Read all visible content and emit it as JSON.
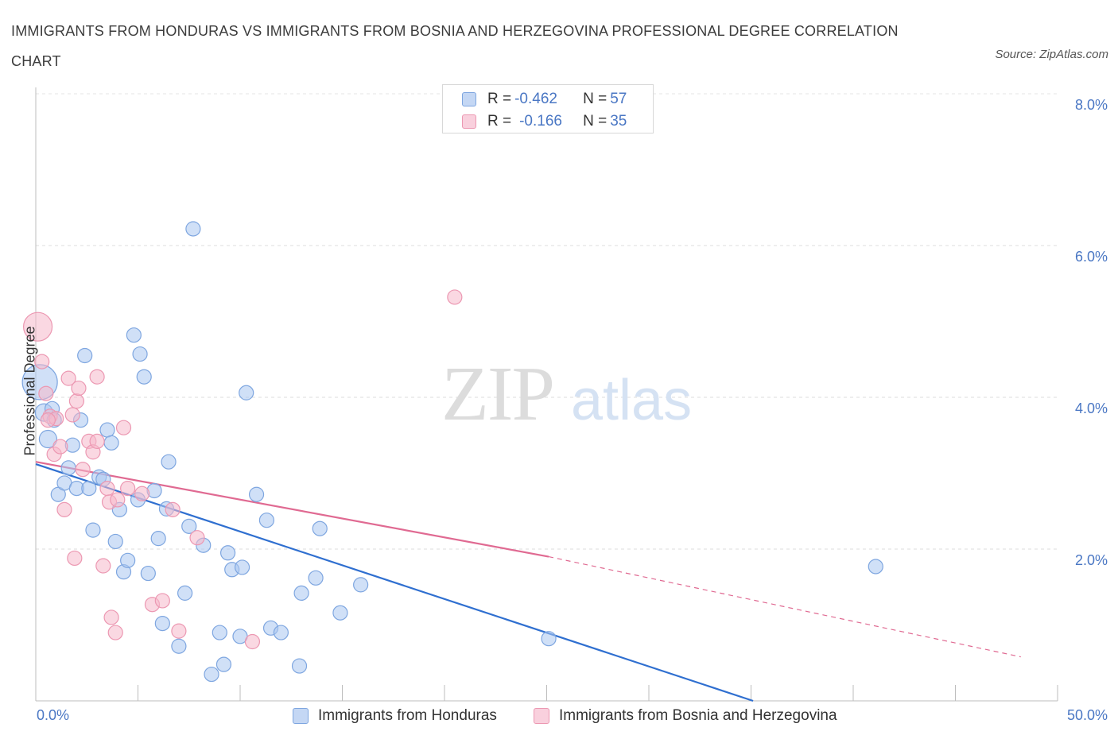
{
  "title": "IMMIGRANTS FROM HONDURAS VS IMMIGRANTS FROM BOSNIA AND HERZEGOVINA PROFESSIONAL DEGREE CORRELATION CHART",
  "source": "Source: ZipAtlas.com",
  "watermark": {
    "zip": "ZIP",
    "atlas": "atlas"
  },
  "legend": {
    "rows": [
      {
        "r_label": "R = ",
        "r_value": "-0.462",
        "n_label": "N = ",
        "n_value": "57",
        "color": "#aac6f0"
      },
      {
        "r_label": "R = ",
        "r_value": "-0.166",
        "n_label": "N = ",
        "n_value": "35",
        "color": "#f5b8cb"
      }
    ]
  },
  "chart_data": {
    "type": "scatter",
    "title": "IMMIGRANTS FROM HONDURAS VS IMMIGRANTS FROM BOSNIA AND HERZEGOVINA PROFESSIONAL DEGREE CORRELATION CHART",
    "xlabel": "",
    "ylabel": "Professional Degree",
    "xlim": [
      0,
      50
    ],
    "ylim": [
      0,
      8
    ],
    "x_tick_labels": [
      "0.0%",
      "50.0%"
    ],
    "y_tick_labels": [
      "2.0%",
      "4.0%",
      "6.0%",
      "8.0%"
    ],
    "y_ticks": [
      2,
      4,
      6,
      8
    ],
    "grid": true,
    "legend_position": "top-center",
    "series": [
      {
        "name": "Immigrants from Honduras",
        "color": "#aac6f0",
        "stroke": "#7ea6e0",
        "trend_color": "#2f6fd0",
        "trend": {
          "x0": 0,
          "y0": 3.12,
          "x1": 35.1,
          "y1": 0.0
        },
        "points": [
          [
            0.2,
            4.2
          ],
          [
            0.4,
            3.8
          ],
          [
            0.6,
            3.45
          ],
          [
            0.8,
            3.85
          ],
          [
            0.9,
            3.7
          ],
          [
            1.1,
            2.72
          ],
          [
            1.4,
            2.87
          ],
          [
            1.6,
            3.07
          ],
          [
            1.8,
            3.37
          ],
          [
            2.0,
            2.8
          ],
          [
            2.2,
            3.7
          ],
          [
            2.4,
            4.55
          ],
          [
            2.6,
            2.8
          ],
          [
            2.8,
            2.25
          ],
          [
            3.1,
            2.95
          ],
          [
            3.3,
            2.92
          ],
          [
            3.5,
            3.57
          ],
          [
            3.7,
            3.4
          ],
          [
            3.9,
            2.1
          ],
          [
            4.1,
            2.52
          ],
          [
            4.3,
            1.7
          ],
          [
            4.5,
            1.85
          ],
          [
            4.8,
            4.82
          ],
          [
            5.0,
            2.65
          ],
          [
            5.1,
            4.57
          ],
          [
            5.3,
            4.27
          ],
          [
            5.5,
            1.68
          ],
          [
            5.8,
            2.77
          ],
          [
            6.0,
            2.14
          ],
          [
            6.2,
            1.02
          ],
          [
            6.5,
            3.15
          ],
          [
            6.4,
            2.53
          ],
          [
            7.0,
            0.72
          ],
          [
            7.3,
            1.42
          ],
          [
            7.5,
            2.3
          ],
          [
            7.7,
            6.22
          ],
          [
            8.2,
            2.05
          ],
          [
            8.6,
            0.35
          ],
          [
            9.0,
            0.9
          ],
          [
            9.2,
            0.48
          ],
          [
            9.4,
            1.95
          ],
          [
            9.6,
            1.73
          ],
          [
            10.0,
            0.85
          ],
          [
            10.1,
            1.76
          ],
          [
            10.3,
            4.06
          ],
          [
            10.8,
            2.72
          ],
          [
            11.3,
            2.38
          ],
          [
            11.5,
            0.96
          ],
          [
            12.0,
            0.9
          ],
          [
            12.9,
            0.46
          ],
          [
            13.0,
            1.42
          ],
          [
            13.7,
            1.62
          ],
          [
            13.9,
            2.27
          ],
          [
            14.9,
            1.16
          ],
          [
            15.9,
            1.53
          ],
          [
            25.1,
            0.82
          ],
          [
            41.1,
            1.77
          ]
        ]
      },
      {
        "name": "Immigrants from Bosnia and Herzegovina",
        "color": "#f5b8cb",
        "stroke": "#ec98b2",
        "trend_color": "#e06a92",
        "trend": {
          "x0": 0,
          "y0": 3.15,
          "x1": 25.1,
          "y1": 1.9
        },
        "trend_ext": {
          "x0": 25.1,
          "y0": 1.9,
          "x1": 48.2,
          "y1": 0.58
        },
        "points": [
          [
            0.1,
            4.93
          ],
          [
            0.3,
            4.47
          ],
          [
            0.5,
            4.05
          ],
          [
            0.7,
            3.75
          ],
          [
            0.9,
            3.25
          ],
          [
            1.0,
            3.72
          ],
          [
            1.2,
            3.35
          ],
          [
            1.4,
            2.52
          ],
          [
            1.6,
            4.25
          ],
          [
            1.8,
            3.77
          ],
          [
            1.9,
            1.88
          ],
          [
            2.0,
            3.95
          ],
          [
            2.1,
            4.12
          ],
          [
            2.3,
            3.05
          ],
          [
            2.6,
            3.42
          ],
          [
            2.8,
            3.28
          ],
          [
            3.0,
            3.42
          ],
          [
            3.0,
            4.27
          ],
          [
            3.3,
            1.78
          ],
          [
            3.5,
            2.8
          ],
          [
            3.6,
            2.62
          ],
          [
            3.7,
            1.1
          ],
          [
            3.9,
            0.9
          ],
          [
            4.0,
            2.65
          ],
          [
            4.3,
            3.6
          ],
          [
            4.5,
            2.8
          ],
          [
            5.2,
            2.73
          ],
          [
            5.7,
            1.27
          ],
          [
            6.2,
            1.32
          ],
          [
            6.7,
            2.52
          ],
          [
            7.0,
            0.92
          ],
          [
            7.9,
            2.15
          ],
          [
            10.6,
            0.78
          ],
          [
            20.5,
            5.32
          ],
          [
            0.6,
            3.7
          ]
        ]
      }
    ]
  },
  "bottom_legend": [
    {
      "label": "Immigrants from Honduras",
      "color": "#aac6f0"
    },
    {
      "label": "Immigrants from Bosnia and Herzegovina",
      "color": "#f5b8cb"
    }
  ]
}
